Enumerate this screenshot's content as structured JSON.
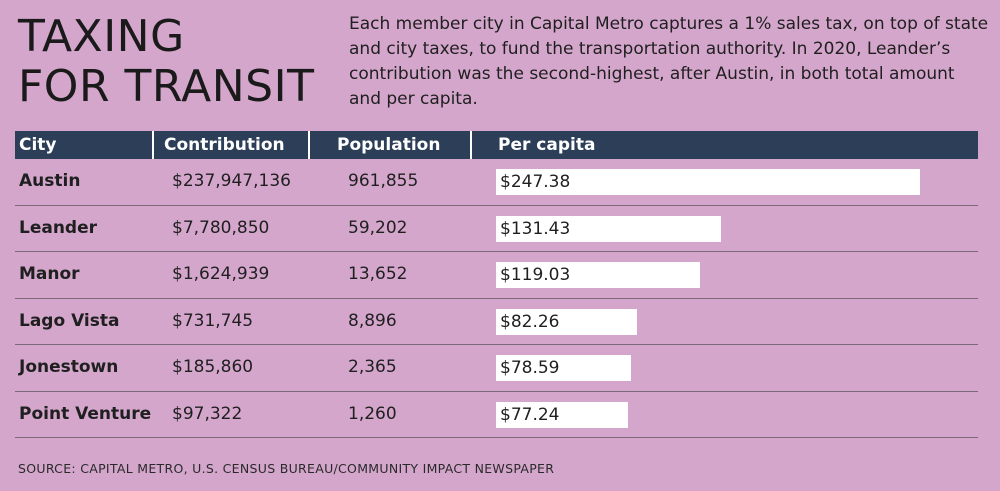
{
  "title_lines": [
    "TAXING",
    "FOR TRANSIT"
  ],
  "description": "Each member city in Capital Metro captures a 1% sales tax, on top of state and city taxes, to fund the transportation authority. In 2020, Leander’s contribution was the second-highest, after Austin, in both total amount and per capita.",
  "headers": [
    "City",
    "Contribution",
    "Population",
    "Per capita"
  ],
  "source": "SOURCE: CAPITAL METRO, U.S. CENSUS BUREAU/COMMUNITY IMPACT NEWSPAPER",
  "colors": {
    "background": "#d4a6cc",
    "header": "#2c3e58",
    "bar": "#ffffff"
  },
  "chart_data": {
    "type": "bar",
    "categories": [
      "Austin",
      "Leander",
      "Manor",
      "Lago Vista",
      "Jonestown",
      "Point Venture"
    ],
    "contributions": [
      "$237,947,136",
      "$7,780,850",
      "$1,624,939",
      "$731,745",
      "$185,860",
      "$97,322"
    ],
    "populations": [
      "961,855",
      "59,202",
      "13,652",
      "8,896",
      "2,365",
      "1,260"
    ],
    "per_capita_labels": [
      "$247.38",
      "$131.43",
      "$119.03",
      "$82.26",
      "$78.59",
      "$77.24"
    ],
    "values": [
      247.38,
      131.43,
      119.03,
      82.26,
      78.59,
      77.24
    ]
  }
}
